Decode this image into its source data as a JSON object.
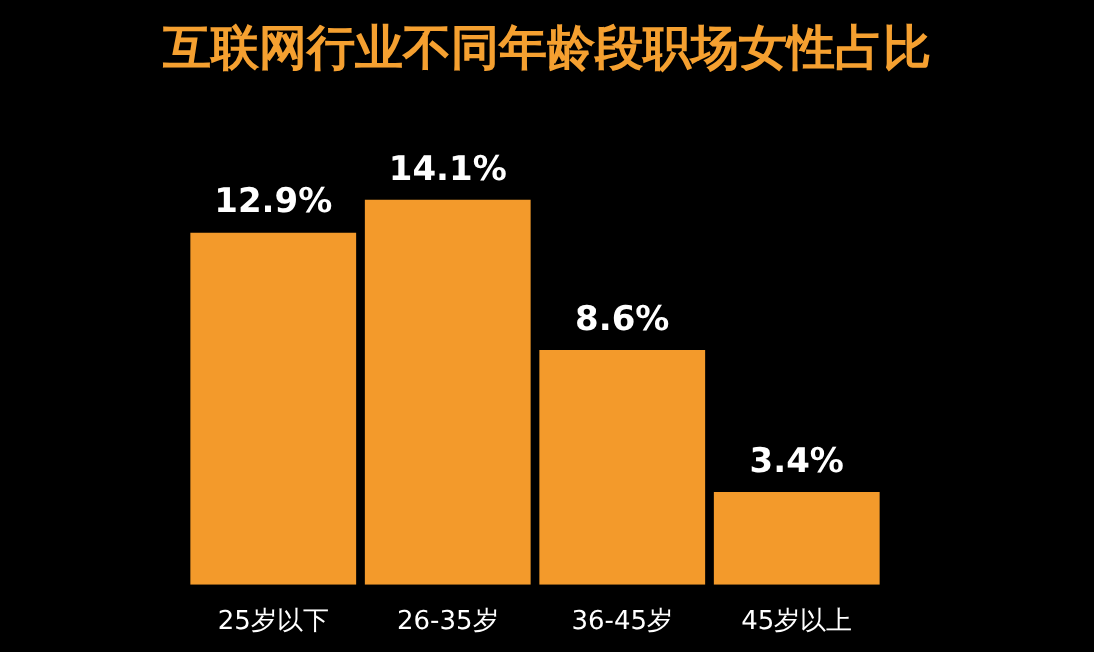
{
  "chart_data": {
    "type": "bar",
    "title": "互联网行业不同年龄段职场女性占比",
    "categories": [
      "25岁以下",
      "26-35岁",
      "36-45岁",
      "45岁以上"
    ],
    "values": [
      12.9,
      14.1,
      8.6,
      3.4
    ],
    "value_labels": [
      "12.9%",
      "14.1%",
      "8.6%",
      "3.4%"
    ],
    "color": "#f39a2b"
  }
}
